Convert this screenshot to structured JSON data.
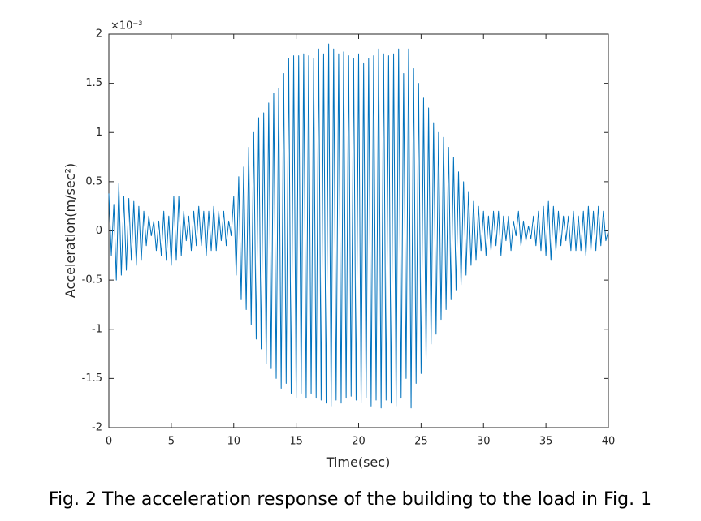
{
  "chart_data": {
    "type": "line",
    "xlabel": "Time(sec)",
    "ylabel": "Acceleration(m/sec²)",
    "y_multiplier": "×10⁻³",
    "caption": "Fig. 2 The acceleration response of the building to the load in Fig. 1",
    "xlim": [
      0,
      40
    ],
    "xticks": [
      0,
      5,
      10,
      15,
      20,
      25,
      30,
      35,
      40
    ],
    "ylim": [
      -2,
      2
    ],
    "yticks": [
      -2,
      -1.5,
      -1,
      -0.5,
      0,
      0.5,
      1,
      1.5,
      2
    ],
    "grid": false,
    "x": [
      0,
      0.2,
      0.4,
      0.6,
      0.8,
      1,
      1.2,
      1.4,
      1.6,
      1.8,
      2,
      2.2,
      2.4,
      2.6,
      2.8,
      3,
      3.2,
      3.4,
      3.6,
      3.8,
      4,
      4.2,
      4.4,
      4.6,
      4.8,
      5,
      5.2,
      5.4,
      5.6,
      5.8,
      6,
      6.2,
      6.4,
      6.6,
      6.8,
      7,
      7.2,
      7.4,
      7.6,
      7.8,
      8,
      8.2,
      8.4,
      8.6,
      8.8,
      9,
      9.2,
      9.4,
      9.6,
      9.8,
      10,
      10.2,
      10.4,
      10.6,
      10.8,
      11,
      11.2,
      11.4,
      11.6,
      11.8,
      12,
      12.2,
      12.4,
      12.6,
      12.8,
      13,
      13.2,
      13.4,
      13.6,
      13.8,
      14,
      14.2,
      14.4,
      14.6,
      14.8,
      15,
      15.2,
      15.4,
      15.6,
      15.8,
      16,
      16.2,
      16.4,
      16.6,
      16.8,
      17,
      17.2,
      17.4,
      17.6,
      17.8,
      18,
      18.2,
      18.4,
      18.6,
      18.8,
      19,
      19.2,
      19.4,
      19.6,
      19.8,
      20,
      20.2,
      20.4,
      20.6,
      20.8,
      21,
      21.2,
      21.4,
      21.6,
      21.8,
      22,
      22.2,
      22.4,
      22.6,
      22.8,
      23,
      23.2,
      23.4,
      23.6,
      23.8,
      24,
      24.2,
      24.4,
      24.6,
      24.8,
      25,
      25.2,
      25.4,
      25.6,
      25.8,
      26,
      26.2,
      26.4,
      26.6,
      26.8,
      27,
      27.2,
      27.4,
      27.6,
      27.8,
      28,
      28.2,
      28.4,
      28.6,
      28.8,
      29,
      29.2,
      29.4,
      29.6,
      29.8,
      30,
      30.2,
      30.4,
      30.6,
      30.8,
      31,
      31.2,
      31.4,
      31.6,
      31.8,
      32,
      32.2,
      32.4,
      32.6,
      32.8,
      33,
      33.2,
      33.4,
      33.6,
      33.8,
      34,
      34.2,
      34.4,
      34.6,
      34.8,
      35,
      35.2,
      35.4,
      35.6,
      35.8,
      36,
      36.2,
      36.4,
      36.6,
      36.8,
      37,
      37.2,
      37.4,
      37.6,
      37.8,
      38,
      38.2,
      38.4,
      38.6,
      38.8,
      39,
      39.2,
      39.4,
      39.6,
      39.8,
      40
    ],
    "series": [
      {
        "color": "#0072bd",
        "values": [
          0.38,
          -0.25,
          0.27,
          -0.5,
          0.48,
          -0.45,
          0.35,
          -0.4,
          0.33,
          -0.3,
          0.3,
          -0.35,
          0.25,
          -0.3,
          0.2,
          -0.15,
          0.15,
          -0.05,
          0.1,
          -0.2,
          0.1,
          -0.25,
          0.2,
          -0.3,
          0.15,
          -0.35,
          0.35,
          -0.3,
          0.35,
          -0.25,
          0.2,
          -0.1,
          0.15,
          -0.2,
          0.2,
          -0.15,
          0.25,
          -0.15,
          0.2,
          -0.25,
          0.2,
          -0.2,
          0.25,
          -0.2,
          0.2,
          -0.1,
          0.2,
          -0.15,
          0.1,
          -0.05,
          0.35,
          -0.45,
          0.55,
          -0.7,
          0.65,
          -0.8,
          0.85,
          -0.95,
          1.0,
          -1.1,
          1.15,
          -1.2,
          1.2,
          -1.35,
          1.3,
          -1.4,
          1.4,
          -1.5,
          1.45,
          -1.6,
          1.6,
          -1.55,
          1.75,
          -1.65,
          1.78,
          -1.7,
          1.78,
          -1.65,
          1.8,
          -1.7,
          1.78,
          -1.65,
          1.75,
          -1.7,
          1.85,
          -1.72,
          1.8,
          -1.75,
          1.9,
          -1.78,
          1.85,
          -1.72,
          1.8,
          -1.75,
          1.82,
          -1.7,
          1.78,
          -1.68,
          1.75,
          -1.72,
          1.8,
          -1.75,
          1.7,
          -1.7,
          1.75,
          -1.78,
          1.78,
          -1.72,
          1.85,
          -1.8,
          1.8,
          -1.72,
          1.78,
          -1.75,
          1.8,
          -1.78,
          1.85,
          -1.7,
          1.6,
          -1.5,
          1.85,
          -1.8,
          1.65,
          -1.55,
          1.5,
          -1.45,
          1.35,
          -1.3,
          1.25,
          -1.15,
          1.1,
          -1.05,
          1.0,
          -0.9,
          0.95,
          -0.8,
          0.85,
          -0.7,
          0.75,
          -0.6,
          0.6,
          -0.55,
          0.5,
          -0.45,
          0.4,
          -0.35,
          0.3,
          -0.3,
          0.25,
          -0.2,
          0.2,
          -0.25,
          0.15,
          -0.2,
          0.2,
          -0.15,
          0.2,
          -0.25,
          0.15,
          -0.1,
          0.15,
          -0.2,
          0.1,
          -0.05,
          0.2,
          -0.15,
          0.1,
          -0.1,
          0.05,
          -0.08,
          0.15,
          -0.15,
          0.2,
          -0.2,
          0.25,
          -0.25,
          0.3,
          -0.3,
          0.25,
          -0.2,
          0.2,
          -0.15,
          0.15,
          -0.1,
          0.15,
          -0.2,
          0.2,
          -0.2,
          0.15,
          -0.2,
          0.2,
          -0.25,
          0.25,
          -0.2,
          0.2,
          -0.2,
          0.25,
          -0.15,
          0.2,
          -0.1,
          0.0
        ]
      }
    ]
  }
}
